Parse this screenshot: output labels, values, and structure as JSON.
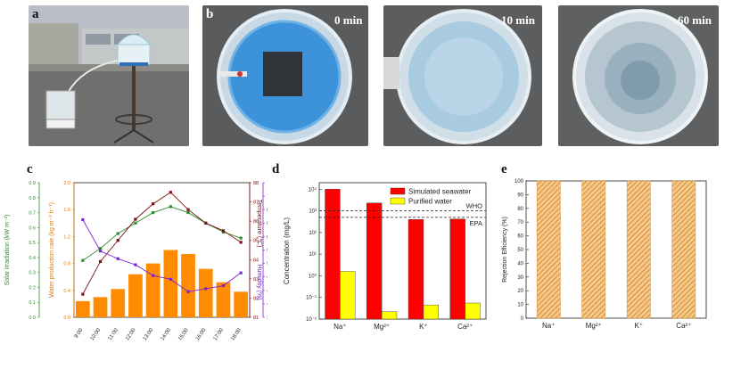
{
  "panels": {
    "a": {
      "label": "a"
    },
    "b": {
      "label": "b",
      "times": [
        "0 min",
        "10 min",
        "60 min"
      ]
    },
    "c": {
      "label": "c"
    },
    "d": {
      "label": "d"
    },
    "e": {
      "label": "e"
    }
  },
  "chart_data": [
    {
      "id": "c",
      "type": "bar+line",
      "categories": [
        "9:00",
        "10:00",
        "11:00",
        "12:00",
        "13:00",
        "14:00",
        "15:00",
        "16:00",
        "17:00",
        "18:00"
      ],
      "bar_series": {
        "name": "Water production rate",
        "values": [
          0.24,
          0.3,
          0.42,
          0.64,
          0.8,
          1.0,
          0.94,
          0.72,
          0.52,
          0.38
        ],
        "color": "#ff8c00"
      },
      "line_series": [
        {
          "name": "Solar irradiation",
          "axis": "solar",
          "values": [
            0.38,
            0.46,
            0.56,
            0.63,
            0.7,
            0.74,
            0.7,
            0.63,
            0.57,
            0.53
          ],
          "color": "#2e8b2e"
        },
        {
          "name": "Temperature",
          "axis": "temp",
          "values": [
            82.2,
            83.9,
            85.0,
            86.1,
            86.9,
            87.5,
            86.6,
            85.9,
            85.5,
            84.9
          ],
          "color": "#7a1010"
        },
        {
          "name": "Humidity",
          "axis": "humidity",
          "values": [
            65,
            55.7,
            53.4,
            51.6,
            48.4,
            47.3,
            43.6,
            44.5,
            45.4,
            49.2
          ],
          "color": "#7b22d6"
        }
      ],
      "axes": {
        "solar": {
          "label": "Solar irradiation (kW m⁻²)",
          "range": [
            0,
            0.9
          ],
          "ticks": [
            "0.0",
            "0.1",
            "0.2",
            "0.3",
            "0.4",
            "0.5",
            "0.6",
            "0.7",
            "0.8",
            "0.9"
          ],
          "color": "#2e8b2e"
        },
        "water": {
          "label": "Water production rate (kg m⁻² h⁻¹)",
          "range": [
            0,
            2.0
          ],
          "ticks": [
            "0.0",
            "0.4",
            "0.8",
            "1.2",
            "1.6",
            "2.0"
          ],
          "color": "#e07b00"
        },
        "temp": {
          "label": "Temperature (℃)",
          "range": [
            81,
            88
          ],
          "ticks": [
            "81",
            "82",
            "83",
            "84",
            "85",
            "86",
            "87",
            "88"
          ],
          "color": "#7a1010"
        },
        "humidity": {
          "label": "Humidity (%)",
          "range": [
            36,
            76
          ],
          "ticks": [
            "36",
            "40",
            "44",
            "48",
            "52",
            "56",
            "60",
            "64",
            "68",
            "72",
            "76"
          ],
          "color": "#7b22d6"
        }
      }
    },
    {
      "id": "d",
      "type": "bar",
      "categories": [
        "Na⁺",
        "Mg²⁺",
        "K⁺",
        "Ca²⁺"
      ],
      "series": [
        {
          "name": "Simulated seawater",
          "values": [
            10000,
            2300,
            400,
            420
          ],
          "color": "#ff0000"
        },
        {
          "name": "Purified water",
          "values": [
            1.6,
            0.022,
            0.045,
            0.055
          ],
          "color": "#ffff00"
        }
      ],
      "ylabel": "Concentration (mg/L)",
      "yscale": "log",
      "ylim": [
        0.01,
        20000
      ],
      "yticks": [
        "10⁻²",
        "10⁻¹",
        "10⁰",
        "10¹",
        "10²",
        "10³",
        "10⁴"
      ],
      "reference_lines": [
        {
          "label": "WHO",
          "value": 1000
        },
        {
          "label": "EPA",
          "value": 500
        }
      ]
    },
    {
      "id": "e",
      "type": "bar",
      "categories": [
        "Na⁺",
        "Mg²⁺",
        "K⁺",
        "Ca²⁺"
      ],
      "values": [
        99.98,
        99.99,
        99.99,
        99.99
      ],
      "color": "#e8a046",
      "pattern": "hatched",
      "ylabel": "Rejection Efficiency (%)",
      "ylim": [
        0,
        100
      ],
      "yticks": [
        "0",
        "10",
        "20",
        "30",
        "40",
        "50",
        "60",
        "70",
        "80",
        "90",
        "100"
      ]
    }
  ]
}
